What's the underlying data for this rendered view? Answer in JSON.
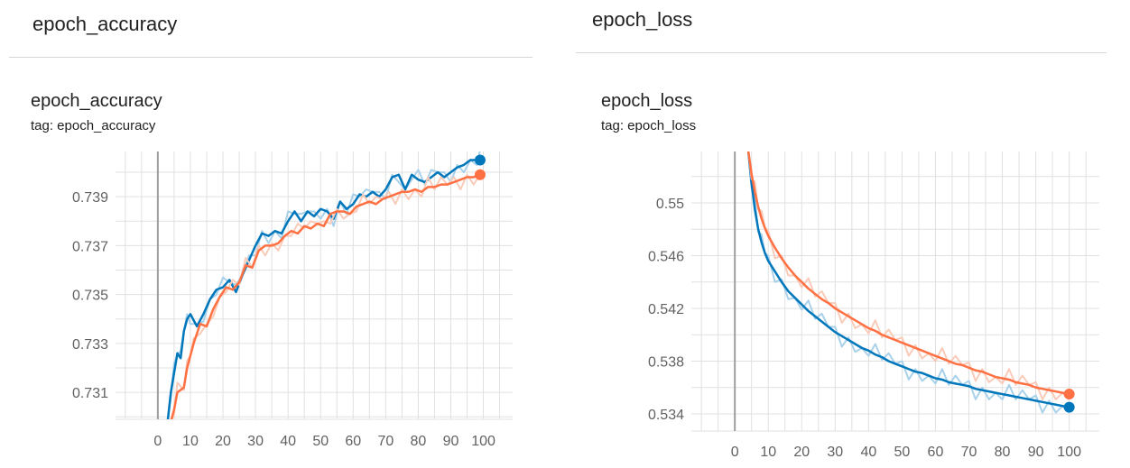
{
  "cards": [
    {
      "header": "epoch_accuracy",
      "chart_title": "epoch_accuracy",
      "tag": "tag: epoch_accuracy"
    },
    {
      "header": "epoch_loss",
      "chart_title": "epoch_loss",
      "tag": "tag: epoch_loss"
    }
  ],
  "colors": {
    "series_a": "#0077bb",
    "series_a_raw": "#a9d1ea",
    "series_b": "#ff7043",
    "series_b_raw": "#f9cbb8",
    "grid": "#e0e0e0",
    "zero_axis": "#9e9e9e"
  },
  "chart_data": [
    {
      "type": "line",
      "title": "epoch_accuracy",
      "subtitle": "tag: epoch_accuracy",
      "xlabel": "",
      "ylabel": "",
      "xlim": [
        -13,
        109
      ],
      "ylim": [
        0.7299,
        0.74085
      ],
      "x_ticks": [
        0,
        10,
        20,
        30,
        40,
        50,
        60,
        70,
        80,
        90,
        100
      ],
      "y_ticks": [
        0.731,
        0.733,
        0.735,
        0.737,
        0.739
      ],
      "y_tick_labels": [
        "0.731",
        "0.733",
        "0.735",
        "0.737",
        "0.739"
      ],
      "grid": true,
      "series": [
        {
          "color": "#0077bb",
          "raw_color": "#a9d1ea",
          "points": [
            [
              3,
              0.7298
            ],
            [
              4,
              0.731
            ],
            [
              5,
              0.7318
            ],
            [
              6,
              0.7326
            ],
            [
              7,
              0.7324
            ],
            [
              8,
              0.7335
            ],
            [
              9,
              0.734
            ],
            [
              10,
              0.7342
            ],
            [
              12,
              0.7337
            ],
            [
              14,
              0.7342
            ],
            [
              16,
              0.7348
            ],
            [
              18,
              0.7352
            ],
            [
              20,
              0.7353
            ],
            [
              22,
              0.7356
            ],
            [
              24,
              0.7351
            ],
            [
              26,
              0.7358
            ],
            [
              28,
              0.7364
            ],
            [
              30,
              0.737
            ],
            [
              32,
              0.7375
            ],
            [
              34,
              0.7374
            ],
            [
              36,
              0.7376
            ],
            [
              38,
              0.7375
            ],
            [
              40,
              0.738
            ],
            [
              42,
              0.7384
            ],
            [
              44,
              0.738
            ],
            [
              46,
              0.7384
            ],
            [
              48,
              0.7382
            ],
            [
              50,
              0.7385
            ],
            [
              52,
              0.7384
            ],
            [
              54,
              0.7381
            ],
            [
              56,
              0.7388
            ],
            [
              58,
              0.7385
            ],
            [
              60,
              0.7387
            ],
            [
              62,
              0.7391
            ],
            [
              64,
              0.739
            ],
            [
              66,
              0.7392
            ],
            [
              68,
              0.739
            ],
            [
              70,
              0.7393
            ],
            [
              72,
              0.7398
            ],
            [
              74,
              0.7399
            ],
            [
              76,
              0.7393
            ],
            [
              78,
              0.7399
            ],
            [
              80,
              0.7397
            ],
            [
              82,
              0.7396
            ],
            [
              84,
              0.7398
            ],
            [
              86,
              0.74
            ],
            [
              88,
              0.7398
            ],
            [
              90,
              0.74
            ],
            [
              92,
              0.7402
            ],
            [
              94,
              0.7403
            ],
            [
              96,
              0.7405
            ],
            [
              98,
              0.7405
            ],
            [
              99,
              0.7405
            ]
          ]
        },
        {
          "color": "#ff7043",
          "raw_color": "#f9cbb8",
          "points": [
            [
              4,
              0.7298
            ],
            [
              5,
              0.7303
            ],
            [
              6,
              0.731
            ],
            [
              8,
              0.7312
            ],
            [
              9,
              0.732
            ],
            [
              10,
              0.7325
            ],
            [
              11,
              0.733
            ],
            [
              13,
              0.7338
            ],
            [
              15,
              0.7337
            ],
            [
              17,
              0.7344
            ],
            [
              19,
              0.7349
            ],
            [
              21,
              0.7353
            ],
            [
              23,
              0.7352
            ],
            [
              25,
              0.7355
            ],
            [
              27,
              0.7362
            ],
            [
              29,
              0.7361
            ],
            [
              31,
              0.7368
            ],
            [
              33,
              0.737
            ],
            [
              35,
              0.737
            ],
            [
              37,
              0.7371
            ],
            [
              39,
              0.7374
            ],
            [
              41,
              0.7376
            ],
            [
              43,
              0.7375
            ],
            [
              45,
              0.7378
            ],
            [
              47,
              0.7377
            ],
            [
              49,
              0.7379
            ],
            [
              51,
              0.7378
            ],
            [
              53,
              0.7383
            ],
            [
              55,
              0.7384
            ],
            [
              57,
              0.7384
            ],
            [
              59,
              0.7383
            ],
            [
              61,
              0.7386
            ],
            [
              63,
              0.7387
            ],
            [
              65,
              0.7388
            ],
            [
              67,
              0.7387
            ],
            [
              69,
              0.7389
            ],
            [
              71,
              0.739
            ],
            [
              73,
              0.7391
            ],
            [
              75,
              0.7392
            ],
            [
              77,
              0.7392
            ],
            [
              79,
              0.7393
            ],
            [
              81,
              0.7392
            ],
            [
              83,
              0.7394
            ],
            [
              85,
              0.7394
            ],
            [
              87,
              0.7395
            ],
            [
              89,
              0.7395
            ],
            [
              91,
              0.7396
            ],
            [
              93,
              0.7397
            ],
            [
              95,
              0.7398
            ],
            [
              97,
              0.7398
            ],
            [
              99,
              0.7399
            ]
          ]
        }
      ]
    },
    {
      "type": "line",
      "title": "epoch_loss",
      "subtitle": "tag: epoch_loss",
      "xlabel": "",
      "ylabel": "",
      "xlim": [
        -13,
        109
      ],
      "ylim": [
        0.5327,
        0.5539
      ],
      "x_ticks": [
        0,
        10,
        20,
        30,
        40,
        50,
        60,
        70,
        80,
        90,
        100
      ],
      "y_ticks": [
        0.534,
        0.538,
        0.542,
        0.546,
        0.55
      ],
      "y_tick_labels": [
        "0.534",
        "0.538",
        "0.542",
        "0.546",
        "0.55"
      ],
      "grid": true,
      "series": [
        {
          "color": "#0077bb",
          "raw_color": "#a9d1ea",
          "points": [
            [
              4,
              0.554
            ],
            [
              5,
              0.5515
            ],
            [
              6,
              0.5495
            ],
            [
              7,
              0.548
            ],
            [
              8,
              0.547
            ],
            [
              9,
              0.5462
            ],
            [
              10,
              0.5456
            ],
            [
              12,
              0.5448
            ],
            [
              14,
              0.544
            ],
            [
              16,
              0.5433
            ],
            [
              18,
              0.5428
            ],
            [
              20,
              0.5423
            ],
            [
              22,
              0.5418
            ],
            [
              24,
              0.5414
            ],
            [
              26,
              0.541
            ],
            [
              28,
              0.5406
            ],
            [
              30,
              0.5402
            ],
            [
              32,
              0.5399
            ],
            [
              34,
              0.5396
            ],
            [
              36,
              0.5393
            ],
            [
              38,
              0.539
            ],
            [
              40,
              0.5388
            ],
            [
              42,
              0.5385
            ],
            [
              44,
              0.5383
            ],
            [
              46,
              0.538
            ],
            [
              48,
              0.5378
            ],
            [
              50,
              0.5376
            ],
            [
              52,
              0.5374
            ],
            [
              54,
              0.5372
            ],
            [
              56,
              0.5371
            ],
            [
              58,
              0.5369
            ],
            [
              60,
              0.5367
            ],
            [
              62,
              0.5366
            ],
            [
              64,
              0.5364
            ],
            [
              66,
              0.5363
            ],
            [
              68,
              0.5362
            ],
            [
              70,
              0.5361
            ],
            [
              72,
              0.5359
            ],
            [
              74,
              0.5358
            ],
            [
              76,
              0.5357
            ],
            [
              78,
              0.5356
            ],
            [
              80,
              0.5355
            ],
            [
              82,
              0.5354
            ],
            [
              84,
              0.5353
            ],
            [
              86,
              0.5352
            ],
            [
              88,
              0.5351
            ],
            [
              90,
              0.535
            ],
            [
              92,
              0.5349
            ],
            [
              94,
              0.5348
            ],
            [
              96,
              0.5347
            ],
            [
              98,
              0.5346
            ],
            [
              100,
              0.5345
            ]
          ]
        },
        {
          "color": "#ff7043",
          "raw_color": "#f9cbb8",
          "points": [
            [
              4,
              0.554
            ],
            [
              5,
              0.5522
            ],
            [
              6,
              0.5508
            ],
            [
              7,
              0.5497
            ],
            [
              8,
              0.5488
            ],
            [
              9,
              0.5481
            ],
            [
              10,
              0.5475
            ],
            [
              12,
              0.5466
            ],
            [
              14,
              0.5458
            ],
            [
              16,
              0.5451
            ],
            [
              18,
              0.5445
            ],
            [
              20,
              0.544
            ],
            [
              22,
              0.5435
            ],
            [
              24,
              0.5431
            ],
            [
              26,
              0.5427
            ],
            [
              28,
              0.5424
            ],
            [
              30,
              0.542
            ],
            [
              32,
              0.5417
            ],
            [
              34,
              0.5414
            ],
            [
              36,
              0.5411
            ],
            [
              38,
              0.5408
            ],
            [
              40,
              0.5405
            ],
            [
              42,
              0.5403
            ],
            [
              44,
              0.54
            ],
            [
              46,
              0.5398
            ],
            [
              48,
              0.5396
            ],
            [
              50,
              0.5394
            ],
            [
              52,
              0.5392
            ],
            [
              54,
              0.539
            ],
            [
              56,
              0.5388
            ],
            [
              58,
              0.5386
            ],
            [
              60,
              0.5384
            ],
            [
              62,
              0.5382
            ],
            [
              64,
              0.538
            ],
            [
              66,
              0.5378
            ],
            [
              68,
              0.5377
            ],
            [
              70,
              0.5375
            ],
            [
              72,
              0.5373
            ],
            [
              74,
              0.5372
            ],
            [
              76,
              0.537
            ],
            [
              78,
              0.5368
            ],
            [
              80,
              0.5367
            ],
            [
              82,
              0.5366
            ],
            [
              84,
              0.5364
            ],
            [
              86,
              0.5363
            ],
            [
              88,
              0.5362
            ],
            [
              90,
              0.536
            ],
            [
              92,
              0.5359
            ],
            [
              94,
              0.5358
            ],
            [
              96,
              0.5357
            ],
            [
              98,
              0.5356
            ],
            [
              100,
              0.5355
            ]
          ]
        }
      ]
    }
  ]
}
